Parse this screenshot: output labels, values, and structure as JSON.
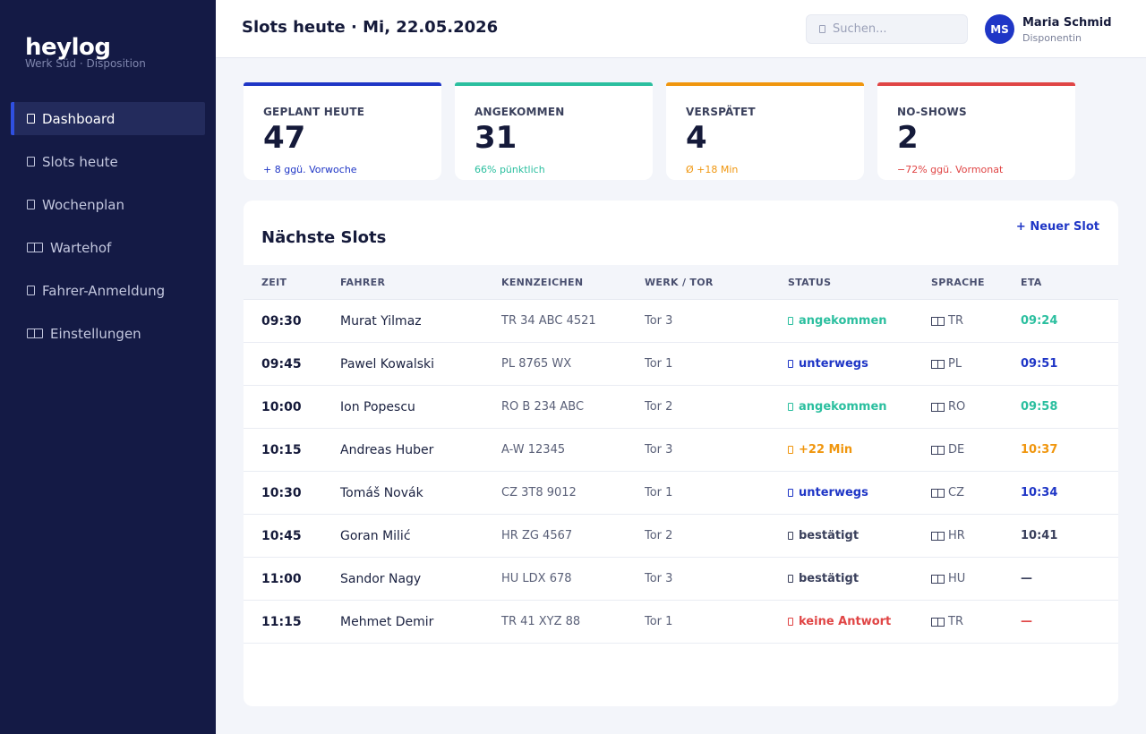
{
  "sidebar": {
    "brand": "heylog",
    "brand_sub": "Werk Süd · Disposition",
    "items": [
      {
        "label": "Dashboard",
        "icon": "dashboard-icon",
        "active": true
      },
      {
        "label": "Slots heute",
        "icon": "calendar-icon",
        "active": false
      },
      {
        "label": "Wochenplan",
        "icon": "week-icon",
        "active": false
      },
      {
        "label": "Wartehof",
        "icon": "truck-icon",
        "active": false
      },
      {
        "label": "Fahrer-Anmeldung",
        "icon": "user-icon",
        "active": false
      },
      {
        "label": "Einstellungen",
        "icon": "gear-icon",
        "active": false
      }
    ]
  },
  "header": {
    "title": "Slots heute · Mi, 22.05.2026",
    "search_placeholder": "Suchen...",
    "user": {
      "initials": "MS",
      "name": "Maria Schmid",
      "role": "Disponentin"
    }
  },
  "kpis": [
    {
      "label": "GEPLANT HEUTE",
      "value": "47",
      "sub": "+ 8 ggü. Vorwoche",
      "color": "#1f36c6"
    },
    {
      "label": "ANGEKOMMEN",
      "value": "31",
      "sub": "66% pünktlich",
      "color": "#2bbf9f"
    },
    {
      "label": "VERSPÄTET",
      "value": "4",
      "sub": "Ø +18 Min",
      "color": "#f0960e"
    },
    {
      "label": "NO-SHOWS",
      "value": "2",
      "sub": "−72% ggü. Vormonat",
      "color": "#e04545"
    }
  ],
  "table": {
    "title": "Nächste Slots",
    "new_slot_label": "+ Neuer Slot",
    "columns": [
      "ZEIT",
      "FAHRER",
      "KENNZEICHEN",
      "WERK / TOR",
      "STATUS",
      "SPRACHE",
      "ETA"
    ],
    "rows": [
      {
        "time": "09:30",
        "driver": "Murat Yilmaz",
        "plate": "TR 34 ABC 4521",
        "gate": "Tor 3",
        "status": "angekommen",
        "status_color": "#2bbf9f",
        "lang": "TR",
        "eta": "09:24",
        "eta_color": "#2bbf9f"
      },
      {
        "time": "09:45",
        "driver": "Pawel Kowalski",
        "plate": "PL 8765 WX",
        "gate": "Tor 1",
        "status": "unterwegs",
        "status_color": "#1f36c6",
        "lang": "PL",
        "eta": "09:51",
        "eta_color": "#1f36c6"
      },
      {
        "time": "10:00",
        "driver": "Ion Popescu",
        "plate": "RO B 234 ABC",
        "gate": "Tor 2",
        "status": "angekommen",
        "status_color": "#2bbf9f",
        "lang": "RO",
        "eta": "09:58",
        "eta_color": "#2bbf9f"
      },
      {
        "time": "10:15",
        "driver": "Andreas Huber",
        "plate": "A-W 12345",
        "gate": "Tor 3",
        "status": "+22 Min",
        "status_color": "#f0960e",
        "lang": "DE",
        "eta": "10:37",
        "eta_color": "#f0960e"
      },
      {
        "time": "10:30",
        "driver": "Tomáš Novák",
        "plate": "CZ 3T8 9012",
        "gate": "Tor 1",
        "status": "unterwegs",
        "status_color": "#1f36c6",
        "lang": "CZ",
        "eta": "10:34",
        "eta_color": "#1f36c6"
      },
      {
        "time": "10:45",
        "driver": "Goran Milić",
        "plate": "HR ZG 4567",
        "gate": "Tor 2",
        "status": "bestätigt",
        "status_color": "#3a405c",
        "lang": "HR",
        "eta": "10:41",
        "eta_color": "#3a405c"
      },
      {
        "time": "11:00",
        "driver": "Sandor Nagy",
        "plate": "HU LDX 678",
        "gate": "Tor 3",
        "status": "bestätigt",
        "status_color": "#3a405c",
        "lang": "HU",
        "eta": "—",
        "eta_color": "#3a405c"
      },
      {
        "time": "11:15",
        "driver": "Mehmet Demir",
        "plate": "TR 41 XYZ 88",
        "gate": "Tor 1",
        "status": "keine Antwort",
        "status_color": "#e04545",
        "lang": "TR",
        "eta": "—",
        "eta_color": "#e04545"
      }
    ]
  }
}
